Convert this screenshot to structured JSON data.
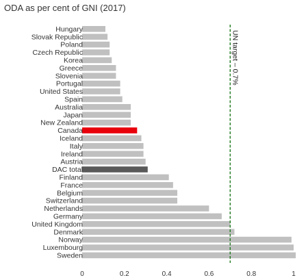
{
  "title": "ODA as per cent of GNI (2017)",
  "chart_data": {
    "type": "bar",
    "orientation": "horizontal",
    "title": "ODA as per cent of GNI (2017)",
    "xlabel": "",
    "ylabel": "",
    "xlim": [
      0,
      1
    ],
    "x_ticks": [
      "0",
      "0.2",
      "0.4",
      "0.6",
      "0.8",
      "1"
    ],
    "grid": false,
    "categories": [
      "Hungary",
      "Slovak Republic",
      "Poland",
      "Czech Republic",
      "Korea",
      "Greece",
      "Slovenia",
      "Portugal",
      "United States",
      "Spain",
      "Australia",
      "Japan",
      "New Zealand",
      "Canada",
      "Iceland",
      "Italy",
      "Ireland",
      "Austria",
      "DAC total",
      "Finland",
      "France",
      "Belgium",
      "Switzerland",
      "Netherlands",
      "Germany",
      "United Kingdom",
      "Denmark",
      "Norway",
      "Luxembourg",
      "Sweden"
    ],
    "values": [
      0.11,
      0.12,
      0.13,
      0.13,
      0.14,
      0.16,
      0.16,
      0.18,
      0.18,
      0.19,
      0.23,
      0.23,
      0.23,
      0.26,
      0.28,
      0.29,
      0.29,
      0.3,
      0.31,
      0.41,
      0.43,
      0.45,
      0.45,
      0.6,
      0.66,
      0.7,
      0.72,
      0.99,
      1.0,
      1.01
    ],
    "highlight": {
      "Canada": "#e8000b",
      "DAC total": "#595959"
    },
    "bar_color": "#c0c0c0",
    "reference_line": {
      "value": 0.7,
      "label": "UN target – 0.7%",
      "color": "#1f7a1f",
      "style": "dashed"
    }
  }
}
